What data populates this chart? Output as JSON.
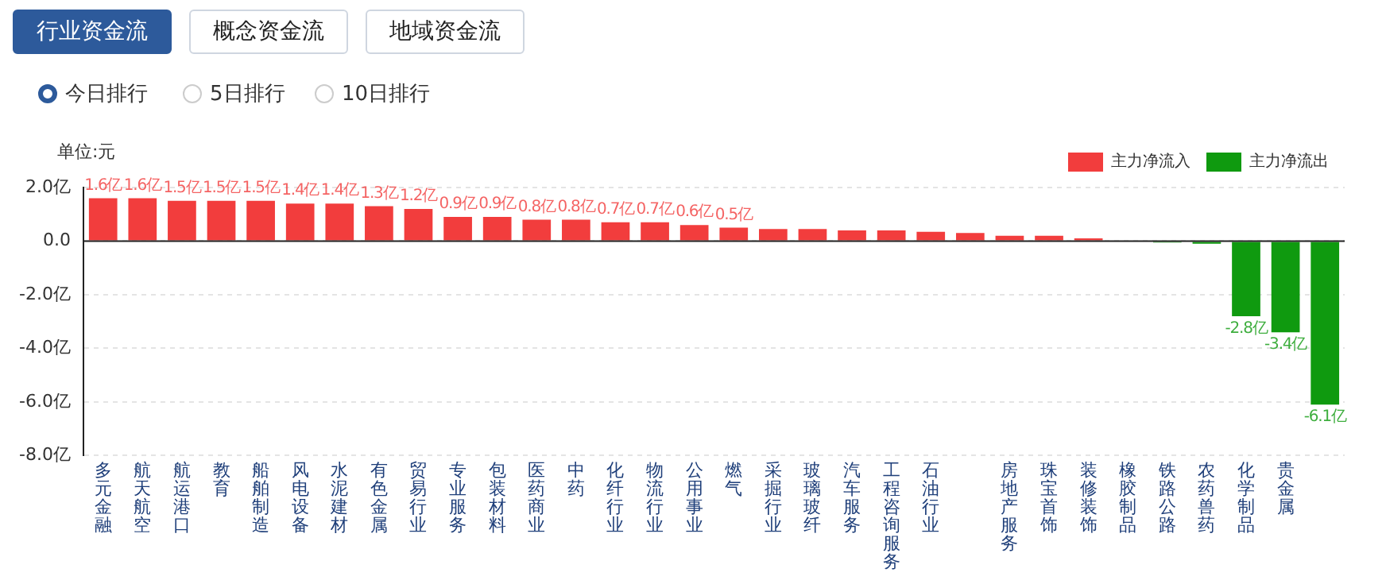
{
  "chart_data": {
    "type": "bar",
    "stacked": true,
    "annotations": [
      "行业资金流",
      "概念资金流",
      "地域资金流",
      "今日排行",
      "5日排行",
      "10日排行",
      "单位:元"
    ],
    "categories": [
      "多元金融",
      "航天航空",
      "航运港口",
      "教育",
      "船舶制造",
      "风电设备",
      "水泥建材",
      "有色金属",
      "贸易行业",
      "专业服务",
      "包装材料",
      "医药商业",
      "中药",
      "化纤行业",
      "物流行业",
      "公用事业",
      "燃气",
      "采掘行业",
      "玻璃玻纤",
      "汽车服务",
      "工程咨询服务",
      "石油行业",
      null,
      "房地产服务",
      "珠宝首饰",
      "装修装饰",
      "橡胶制品",
      "铁路公路",
      "农药兽药",
      "化学制品",
      "贵金属",
      null
    ],
    "series": [
      {
        "name": "主力净流入",
        "color": "#f23d3d",
        "values": [
          1.6,
          1.6,
          1.5,
          1.5,
          1.5,
          1.4,
          1.4,
          1.3,
          1.2,
          0.9,
          0.9,
          0.8,
          0.8,
          0.7,
          0.7,
          0.6,
          0.5,
          0.45,
          0.45,
          0.4,
          0.4,
          0.35,
          0.3,
          0.2,
          0.2,
          0.1,
          null,
          null,
          null,
          null,
          null,
          null
        ],
        "value_labels": [
          "1.6亿",
          "1.6亿",
          "1.5亿",
          "1.5亿",
          "1.5亿",
          "1.4亿",
          "1.4亿",
          "1.3亿",
          "1.2亿",
          "0.9亿",
          "0.9亿",
          "0.8亿",
          "0.8亿",
          "0.7亿",
          "0.7亿",
          "0.6亿",
          "0.5亿",
          null,
          null,
          null,
          null,
          null,
          null,
          null,
          null,
          null,
          null,
          null,
          null,
          null,
          null,
          null
        ]
      },
      {
        "name": "主力净流出",
        "color": "#0f9a0f",
        "values": [
          null,
          null,
          null,
          null,
          null,
          null,
          null,
          null,
          null,
          null,
          null,
          null,
          null,
          null,
          null,
          null,
          null,
          null,
          null,
          null,
          null,
          null,
          null,
          null,
          null,
          null,
          -0.03,
          -0.05,
          -0.1,
          -2.8,
          -3.4,
          -6.1
        ],
        "value_labels": [
          null,
          null,
          null,
          null,
          null,
          null,
          null,
          null,
          null,
          null,
          null,
          null,
          null,
          null,
          null,
          null,
          null,
          null,
          null,
          null,
          null,
          null,
          null,
          null,
          null,
          null,
          null,
          null,
          null,
          "-2.8亿",
          "-3.4亿",
          "-6.1亿"
        ]
      }
    ],
    "ylim": [
      -8,
      2
    ],
    "yticks": [
      {
        "value": 2,
        "label": "2.0亿"
      },
      {
        "value": 0,
        "label": "0.0"
      },
      {
        "value": -2,
        "label": "-2.0亿"
      },
      {
        "value": -4,
        "label": "-4.0亿"
      },
      {
        "value": -6,
        "label": "-6.0亿"
      },
      {
        "value": -8,
        "label": "-8.0亿"
      }
    ],
    "grid": "y",
    "legend": "top right"
  }
}
